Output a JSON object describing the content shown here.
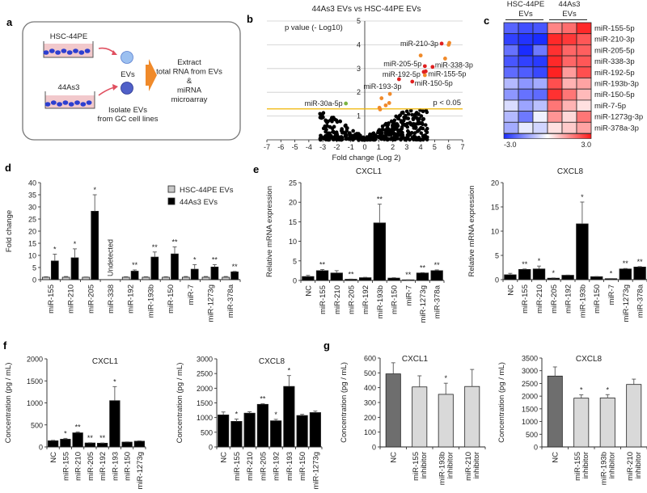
{
  "panel_labels": [
    "a",
    "b",
    "c",
    "d",
    "e",
    "f",
    "g"
  ],
  "schematic": {
    "cell_line_1": "HSC-44PE",
    "cell_line_2": "44As3",
    "evs_label": "EVs",
    "isolate_line1": "Isolate EVs",
    "isolate_line2": "from GC cell lines",
    "extract_lines": [
      "Extract",
      "total RNA from EVs",
      "&",
      "miRNA",
      "microarray"
    ],
    "colors": {
      "arrow": "#f08a2a",
      "ev_light": "#8fb4ec",
      "ev_dark": "#4a5bc4",
      "cells": "#2c3fd0",
      "medium": "#f2c9cc"
    }
  },
  "chart_data": [
    {
      "id": "b",
      "type": "scatter",
      "title": "44As3 EVs vs HSC-44PE EVs",
      "xlabel": "Fold change (Log 2)",
      "ylabel": "p value (- Log10)",
      "xlim": [
        -7,
        7
      ],
      "ylim": [
        0,
        5
      ],
      "xticks": [
        -7,
        -6,
        -5,
        -4,
        -3,
        -2,
        -1,
        0,
        1,
        2,
        3,
        4,
        5,
        6,
        7
      ],
      "yticks": [
        0,
        1,
        2,
        3,
        4,
        5
      ],
      "grid": true,
      "threshold": {
        "y": 1.3,
        "label": "p < 0.05",
        "color": "#f0b400"
      },
      "colors": {
        "selected": "#e02020",
        "significant": "#f08a2a",
        "down": "#7cb342",
        "ns": "#000000"
      },
      "labeled_points": [
        {
          "label": "miR-210-3p",
          "x": 5.5,
          "y": 4.05,
          "group": "selected",
          "side": "left"
        },
        {
          "label": "miR-205-5p",
          "x": 4.3,
          "y": 3.1,
          "group": "selected",
          "side": "left"
        },
        {
          "label": "miR-338-3p",
          "x": 4.85,
          "y": 3.07,
          "group": "selected",
          "side": "right"
        },
        {
          "label": "miR-192-5p",
          "x": 4.22,
          "y": 2.86,
          "group": "selected",
          "side": "left"
        },
        {
          "label": "miR-155-5p",
          "x": 4.36,
          "y": 2.88,
          "group": "selected",
          "side": "right"
        },
        {
          "label": "miR-193-3p",
          "x": 2.45,
          "y": 2.55,
          "group": "selected",
          "side": "below-left"
        },
        {
          "label": "miR-150-5p",
          "x": 3.4,
          "y": 2.45,
          "group": "selected",
          "side": "right"
        },
        {
          "label": "miR-30a-5p",
          "x": -1.35,
          "y": 1.53,
          "group": "down",
          "side": "left"
        }
      ],
      "other_significant_points": [
        [
          6.05,
          4.08
        ],
        [
          6.0,
          4.0
        ],
        [
          4.0,
          3.55
        ],
        [
          5.75,
          3.42
        ],
        [
          4.3,
          2.72
        ],
        [
          1.2,
          1.75
        ],
        [
          1.8,
          1.93
        ],
        [
          1.75,
          1.55
        ],
        [
          1.5,
          1.45
        ],
        [
          1.05,
          1.35
        ],
        [
          1.1,
          1.28
        ]
      ]
    },
    {
      "id": "c",
      "type": "heatmap",
      "column_groups": [
        {
          "line1": "HSC-44PE",
          "line2": "EVs"
        },
        {
          "line1": "44As3",
          "line2": "EVs"
        }
      ],
      "rows": [
        "miR-155-5p",
        "miR-210-3p",
        "miR-205-5p",
        "miR-338-3p",
        "miR-192-5p",
        "miR-193b-3p",
        "miR-150-5p",
        "miR-7-5p",
        "miR-1273g-3p",
        "miR-378a-3p"
      ],
      "values": [
        [
          -2.2,
          -2.5,
          -2.4,
          1.6,
          1.9,
          2.8
        ],
        [
          -2.7,
          -2.9,
          -3.0,
          2.8,
          2.6,
          2.2
        ],
        [
          -2.0,
          -3.0,
          -1.9,
          2.7,
          2.0,
          2.1
        ],
        [
          -2.4,
          -2.7,
          -2.8,
          2.8,
          2.0,
          2.2
        ],
        [
          -2.1,
          -2.3,
          -2.6,
          2.9,
          1.3,
          2.3
        ],
        [
          -1.0,
          -1.5,
          -1.2,
          2.3,
          1.0,
          1.2
        ],
        [
          -1.5,
          -2.0,
          -2.1,
          2.7,
          1.8,
          0.9
        ],
        [
          -0.5,
          -1.3,
          -0.9,
          1.8,
          1.0,
          0.4
        ],
        [
          -1.0,
          -1.9,
          -0.2,
          1.4,
          0.5,
          1.8
        ],
        [
          -1.2,
          -0.3,
          -0.6,
          0.4,
          0.7,
          1.2
        ]
      ],
      "scale": {
        "min": -3.0,
        "max": 3.0,
        "min_label": "-3.0",
        "max_label": "3.0",
        "low_color": "#1a2cff",
        "mid_color": "#ffffff",
        "high_color": "#ff1a1a"
      }
    },
    {
      "id": "d",
      "type": "bar",
      "ylabel": "Fold change",
      "ylim": [
        0,
        40
      ],
      "ystep": 5,
      "categories": [
        "miR-155",
        "miR-210",
        "miR-205",
        "miR-338",
        "miR-192",
        "miR-193b",
        "miR-150",
        "miR-7",
        "miR-1273g",
        "miR-378a"
      ],
      "series": [
        {
          "name": "HSC-44PE EVs",
          "color": "#c8c8c8",
          "values": [
            1,
            1,
            1,
            null,
            1,
            1,
            1,
            1,
            1,
            1
          ],
          "errors": [
            0.2,
            0.3,
            0.1,
            null,
            0.2,
            0.2,
            0.2,
            0.3,
            0.3,
            0.3
          ]
        },
        {
          "name": "44As3 EVs",
          "color": "#000000",
          "values": [
            7.7,
            9.0,
            28.2,
            null,
            3.5,
            9.3,
            10.6,
            4.3,
            5.2,
            3.2
          ],
          "errors": [
            2.8,
            3.7,
            6.8,
            null,
            0.5,
            2.1,
            2.9,
            1.9,
            1.0,
            0.2
          ]
        }
      ],
      "significance": [
        "*",
        "*",
        "*",
        "",
        "**",
        "**",
        "**",
        "*",
        "**",
        "**"
      ],
      "annotations": [
        {
          "category": "miR-338",
          "text": "Undetected"
        }
      ],
      "legend": "top-right"
    },
    {
      "id": "e1",
      "type": "bar",
      "title": "CXCL1",
      "ylabel": "Relative mRNA expression",
      "ylim": [
        0,
        25
      ],
      "ystep": 5,
      "categories": [
        "NC",
        "miR-155",
        "miR-210",
        "miR-205",
        "miR-192",
        "miR-193b",
        "miR-150",
        "miR-7",
        "miR-1273g",
        "miR-378a"
      ],
      "series": [
        {
          "name": "",
          "color": "#000000",
          "values": [
            1.0,
            2.5,
            1.9,
            0.3,
            0.7,
            14.7,
            0.6,
            0.15,
            1.9,
            2.5
          ],
          "errors": [
            0.3,
            0.3,
            0.6,
            0.05,
            0.1,
            4.8,
            0.1,
            0.02,
            0.1,
            0.2
          ]
        }
      ],
      "significance": [
        "",
        "**",
        "",
        "**",
        "",
        "**",
        "",
        "**",
        "**",
        "**"
      ]
    },
    {
      "id": "e2",
      "type": "bar",
      "title": "CXCL8",
      "ylabel": "Relative mRNA expression",
      "ylim": [
        0,
        20
      ],
      "ystep": 5,
      "categories": [
        "NC",
        "miR-155",
        "miR-210",
        "miR-205",
        "miR-192",
        "miR-193b",
        "miR-150",
        "miR-7",
        "miR-1273g",
        "miR-378a"
      ],
      "series": [
        {
          "name": "",
          "color": "#000000",
          "values": [
            1.0,
            2.1,
            2.2,
            0.3,
            0.9,
            11.5,
            0.6,
            0.2,
            2.2,
            2.6
          ],
          "errors": [
            0.3,
            0.1,
            0.6,
            0.05,
            0.05,
            4.5,
            0.05,
            0.02,
            0.1,
            0.1
          ]
        }
      ],
      "significance": [
        "",
        "**",
        "*",
        "*",
        "",
        "*",
        "",
        "*",
        "**",
        "**"
      ]
    },
    {
      "id": "f1",
      "type": "bar",
      "title": "CXCL1",
      "ylabel": "Concentration (pg / mL)",
      "ylim": [
        0,
        2000
      ],
      "ystep": 500,
      "categories": [
        "NC",
        "miR-155",
        "miR-210",
        "miR-205",
        "miR-192",
        "miR-193",
        "miR-150",
        "miR-1273g"
      ],
      "series": [
        {
          "name": "",
          "color": "#000000",
          "values": [
            140,
            175,
            320,
            90,
            85,
            1050,
            110,
            130
          ],
          "errors": [
            10,
            20,
            20,
            5,
            5,
            320,
            5,
            8
          ]
        }
      ],
      "significance": [
        "",
        "*",
        "**",
        "**",
        "**",
        "*",
        "",
        ""
      ]
    },
    {
      "id": "f2",
      "type": "bar",
      "title": "CXCL8",
      "ylabel": "Concentration (pg / mL)",
      "ylim": [
        0,
        3000
      ],
      "ystep": 500,
      "categories": [
        "NC",
        "miR-155",
        "miR-210",
        "miR-205",
        "miR-192",
        "miR-193",
        "miR-150",
        "miR-1273g"
      ],
      "series": [
        {
          "name": "",
          "color": "#000000",
          "values": [
            1090,
            870,
            1150,
            1450,
            890,
            2060,
            1070,
            1170
          ],
          "errors": [
            100,
            80,
            50,
            20,
            50,
            370,
            40,
            50
          ]
        }
      ],
      "significance": [
        "",
        "*",
        "",
        "**",
        "*",
        "*",
        "",
        ""
      ]
    },
    {
      "id": "g1",
      "type": "bar",
      "title": "CXCL1",
      "ylabel": "Concentration (pg / mL)",
      "ylim": [
        0,
        600
      ],
      "ystep": 100,
      "categories": [
        [
          "NC"
        ],
        [
          "miR-155",
          "inhibitor"
        ],
        [
          "miR-193b",
          "inhibitor"
        ],
        [
          "miR-210",
          "inhibitor"
        ]
      ],
      "series": [
        {
          "name": "",
          "colors": [
            "#6e6e6e",
            "#d9d9d9",
            "#d9d9d9",
            "#d9d9d9"
          ],
          "values": [
            493,
            405,
            355,
            408
          ],
          "errors": [
            75,
            75,
            75,
            115
          ]
        }
      ],
      "significance": [
        "",
        "",
        "*",
        ""
      ]
    },
    {
      "id": "g2",
      "type": "bar",
      "title": "CXCL8",
      "ylabel": "Concentration (pg / mL)",
      "ylim": [
        0,
        3500
      ],
      "ystep": 500,
      "categories": [
        [
          "NC"
        ],
        [
          "miR-155",
          "inhibitor"
        ],
        [
          "miR-193b",
          "inhibitor"
        ],
        [
          "miR-210",
          "inhibitor"
        ]
      ],
      "series": [
        {
          "name": "",
          "colors": [
            "#6e6e6e",
            "#d9d9d9",
            "#d9d9d9",
            "#d9d9d9"
          ],
          "values": [
            2790,
            1920,
            1930,
            2460
          ],
          "errors": [
            360,
            130,
            130,
            210
          ]
        }
      ],
      "significance": [
        "",
        "*",
        "*",
        ""
      ]
    }
  ]
}
